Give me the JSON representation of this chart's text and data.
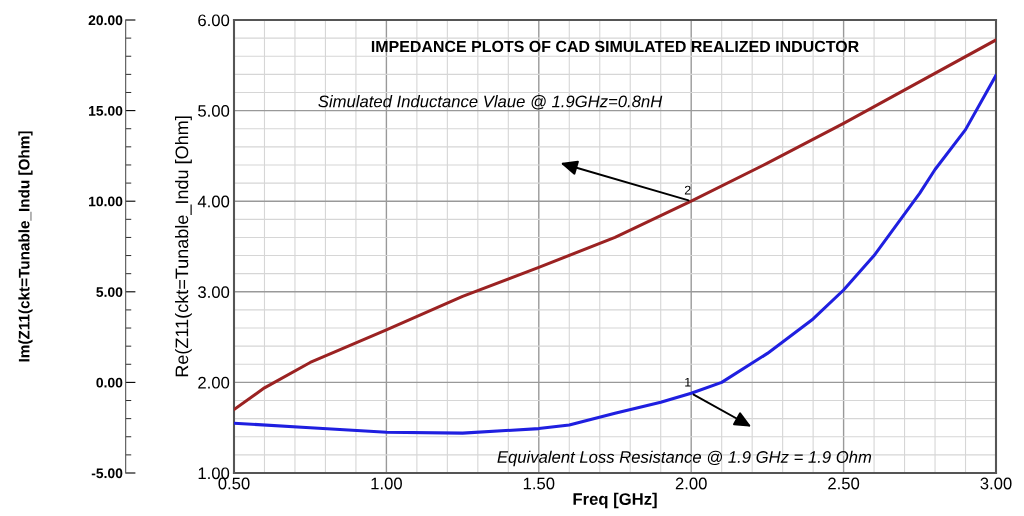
{
  "chart_data": {
    "type": "line",
    "title": "IMPEDANCE PLOTS OF CAD SIMULATED REALIZED INDUCTOR",
    "xlabel": "Freq [GHz]",
    "ylabel": "Re(Z11(ckt=Tunable_Indu [Ohm]",
    "y2label": "Im(Z11(ckt=Tunable_Indu [Ohm]",
    "series": [
      {
        "color": "#9b2222",
        "axis": "y2",
        "x": [
          0.5,
          0.6,
          0.75,
          1.0,
          1.25,
          1.5,
          1.75,
          2.0,
          2.25,
          2.5,
          2.75,
          3.0
        ],
        "values": [
          -1.5,
          -0.3,
          1.1,
          2.9,
          4.75,
          6.35,
          8.0,
          10.0,
          12.1,
          14.3,
          16.6,
          18.9
        ]
      },
      {
        "color": "#1f1fe0",
        "x": [
          0.5,
          0.75,
          1.0,
          1.25,
          1.5,
          1.6,
          1.75,
          1.9,
          2.0,
          2.1,
          2.25,
          2.4,
          2.5,
          2.6,
          2.75,
          2.8,
          2.9,
          3.0
        ],
        "values": [
          1.55,
          1.5,
          1.45,
          1.44,
          1.49,
          1.53,
          1.66,
          1.78,
          1.88,
          2.0,
          2.32,
          2.7,
          3.02,
          3.4,
          4.09,
          4.35,
          4.79,
          5.39
        ]
      }
    ],
    "xlim": [
      0.5,
      3.0
    ],
    "xticks": [
      {
        "value": 0.5,
        "label": "0.50"
      },
      {
        "value": 1.0,
        "label": "1.00"
      },
      {
        "value": 1.5,
        "label": "1.50"
      },
      {
        "value": 2.0,
        "label": "2.00"
      },
      {
        "value": 2.5,
        "label": "2.50"
      },
      {
        "value": 3.0,
        "label": "3.00"
      }
    ],
    "ylim": [
      1,
      6
    ],
    "yticks": [
      {
        "value": 1,
        "label": "1.00"
      },
      {
        "value": 2,
        "label": "2.00"
      },
      {
        "value": 3,
        "label": "3.00"
      },
      {
        "value": 4,
        "label": "4.00"
      },
      {
        "value": 5,
        "label": "5.00"
      },
      {
        "value": 6,
        "label": "6.00"
      }
    ],
    "y2lim": [
      -5,
      20
    ],
    "y2ticks": [
      {
        "value": -5,
        "label": "-5.00"
      },
      {
        "value": 0,
        "label": "0.00"
      },
      {
        "value": 5,
        "label": "5.00"
      },
      {
        "value": 10,
        "label": "10.00"
      },
      {
        "value": 15,
        "label": "15.00"
      },
      {
        "value": 20,
        "label": "20.00"
      }
    ],
    "grid": true,
    "annotations": [
      "Simulated Inductance Vlaue @ 1.9GHz=0.8nH",
      "Equivalent Loss Resistance @ 1.9 GHz = 1.9 Ohm",
      {
        "text": "2",
        "x": 2.0,
        "y": 4.0
      },
      {
        "text": "1",
        "x": 2.0,
        "y": 1.88
      }
    ]
  }
}
